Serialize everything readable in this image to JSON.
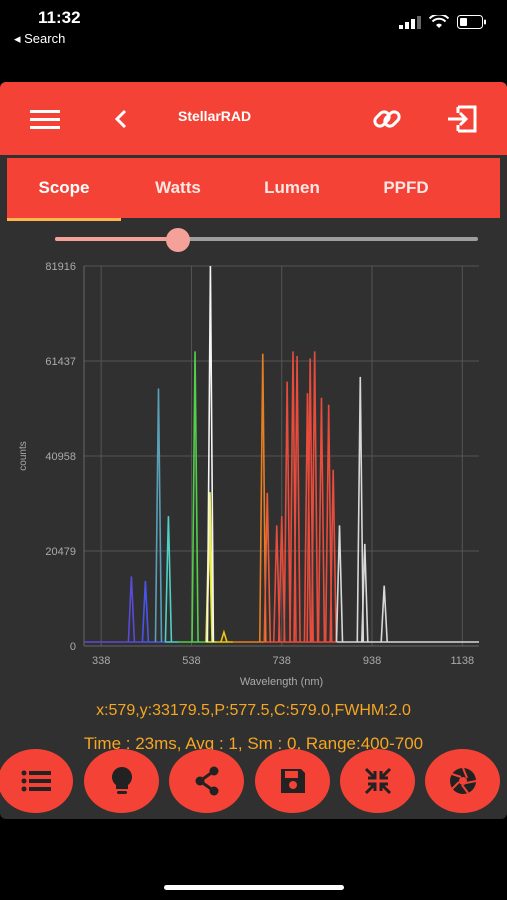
{
  "status": {
    "time": "11:32",
    "back_label": "◂ Search"
  },
  "toolbar": {
    "title": "StellarRAD",
    "menu_icon": "menu-icon",
    "back_icon": "back-icon",
    "link_icon": "link-icon",
    "exit_icon": "exit-icon"
  },
  "tabs": [
    {
      "label": "Scope",
      "active": true
    },
    {
      "label": "Watts",
      "active": false
    },
    {
      "label": "Lumen",
      "active": false
    },
    {
      "label": "PPFD",
      "active": false
    }
  ],
  "slider": {
    "value_fraction": 0.29
  },
  "chart_data": {
    "type": "line",
    "xlabel": "Wavelength (nm)",
    "ylabel": "counts",
    "xlim": [
      300,
      1175
    ],
    "ylim": [
      0,
      81916
    ],
    "x_ticks": [
      338,
      538,
      738,
      938,
      1138
    ],
    "y_ticks": [
      0,
      20479,
      40958,
      61437,
      81916
    ],
    "grid": true,
    "peaks": [
      {
        "x": 405,
        "y": 15000,
        "color": "#5a4bd6"
      },
      {
        "x": 436,
        "y": 14000,
        "color": "#4a55e8"
      },
      {
        "x": 465,
        "y": 55500,
        "color": "#5a9fb8"
      },
      {
        "x": 487,
        "y": 28000,
        "color": "#4fd1c5"
      },
      {
        "x": 546,
        "y": 63500,
        "color": "#52d04a"
      },
      {
        "x": 577,
        "y": 28000,
        "color": "#e0e030"
      },
      {
        "x": 579,
        "y": 33179,
        "color": "#f2f25a"
      },
      {
        "x": 580,
        "y": 81916,
        "color": "#f5f5f5"
      },
      {
        "x": 610,
        "y": 3000,
        "color": "#f1c40f"
      },
      {
        "x": 696,
        "y": 63000,
        "color": "#e67e22"
      },
      {
        "x": 706,
        "y": 33000,
        "color": "#e85d3a"
      },
      {
        "x": 727,
        "y": 26000,
        "color": "#e74c3c"
      },
      {
        "x": 738,
        "y": 28000,
        "color": "#e74c3c"
      },
      {
        "x": 750,
        "y": 57000,
        "color": "#e74c3c"
      },
      {
        "x": 763,
        "y": 63500,
        "color": "#e74c3c"
      },
      {
        "x": 772,
        "y": 62500,
        "color": "#e74c3c"
      },
      {
        "x": 795,
        "y": 54500,
        "color": "#e74c3c"
      },
      {
        "x": 801,
        "y": 62000,
        "color": "#e74c3c"
      },
      {
        "x": 811,
        "y": 63500,
        "color": "#e74c3c"
      },
      {
        "x": 826,
        "y": 53500,
        "color": "#e74c3c"
      },
      {
        "x": 842,
        "y": 52000,
        "color": "#e74c3c"
      },
      {
        "x": 852,
        "y": 38000,
        "color": "#e74c3c"
      },
      {
        "x": 866,
        "y": 26000,
        "color": "#d8d8d8"
      },
      {
        "x": 912,
        "y": 58000,
        "color": "#d8d8d8"
      },
      {
        "x": 922,
        "y": 22000,
        "color": "#d8d8d8"
      },
      {
        "x": 965,
        "y": 13000,
        "color": "#d8d8d8"
      }
    ],
    "x_color_bands": [
      {
        "from": 300,
        "to": 430,
        "color": "#5a4bd6"
      },
      {
        "from": 430,
        "to": 480,
        "color": "#4a55e8"
      },
      {
        "from": 480,
        "to": 510,
        "color": "#4fd1c5"
      },
      {
        "from": 510,
        "to": 570,
        "color": "#52d04a"
      },
      {
        "from": 570,
        "to": 595,
        "color": "#e0e030"
      },
      {
        "from": 595,
        "to": 630,
        "color": "#f1c40f"
      },
      {
        "from": 630,
        "to": 700,
        "color": "#e67e22"
      },
      {
        "from": 700,
        "to": 860,
        "color": "#e74c3c"
      },
      {
        "from": 860,
        "to": 1175,
        "color": "#d8d8d8"
      }
    ]
  },
  "readout": {
    "cursor": "x:579,y:33179.5,P:577.5,C:579.0,FWHM:2.0",
    "settings": "Time : 23ms,  Avg : 1,  Sm : 0, Range:400-700"
  },
  "actions": [
    {
      "name": "list-button",
      "icon": "list-icon"
    },
    {
      "name": "bulb-button",
      "icon": "bulb-icon"
    },
    {
      "name": "share-button",
      "icon": "share-icon"
    },
    {
      "name": "save-button",
      "icon": "save-icon"
    },
    {
      "name": "collapse-button",
      "icon": "collapse-icon"
    },
    {
      "name": "aperture-button",
      "icon": "aperture-icon"
    }
  ],
  "colors": {
    "accent": "#f44336",
    "panel": "#303030",
    "readout": "#f5a623"
  }
}
